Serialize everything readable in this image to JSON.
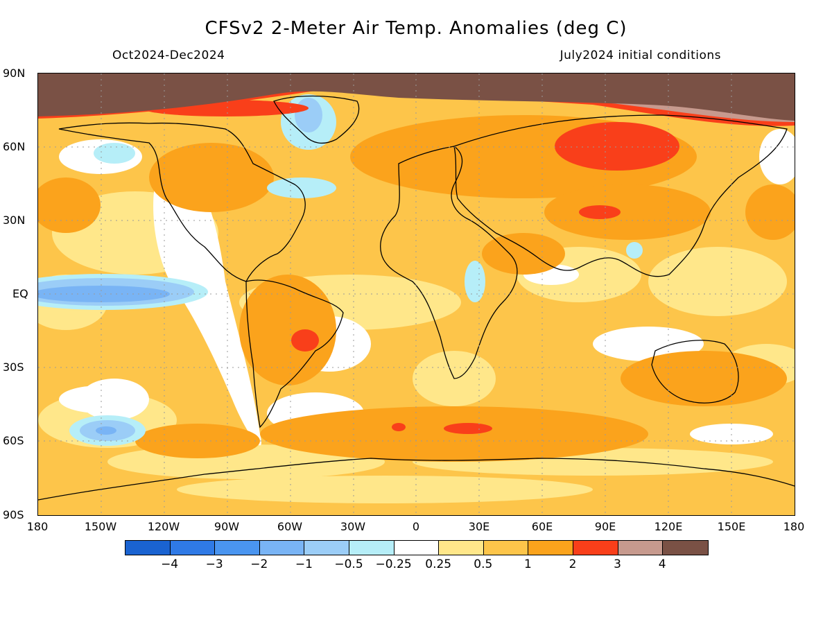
{
  "title": "CFSv2 2-Meter Air Temp. Anomalies (deg C)",
  "period": "Oct2024-Dec2024",
  "initial_conditions": "July2024 initial conditions",
  "lat_labels": [
    "90N",
    "60N",
    "30N",
    "EQ",
    "30S",
    "60S",
    "90S"
  ],
  "lon_labels": [
    "180",
    "150W",
    "120W",
    "90W",
    "60W",
    "30W",
    "0",
    "30E",
    "60E",
    "90E",
    "120E",
    "150E",
    "180"
  ],
  "colorbar": {
    "colors": [
      "#1a63d1",
      "#2f7ae6",
      "#4a95f0",
      "#79b4f5",
      "#9bcdf7",
      "#b6eef8",
      "#ffffff",
      "#ffe78a",
      "#fdc54a",
      "#fba31c",
      "#f93f1a",
      "#c79a8e",
      "#7a5145"
    ],
    "labels": [
      "−4",
      "−3",
      "−2",
      "−1",
      "−0.5",
      "−0.25",
      "0.25",
      "0.5",
      "1",
      "2",
      "3",
      "4"
    ]
  },
  "features": {
    "arctic_band_color": "#7a5145",
    "dominant_color": "#fdc54a"
  }
}
